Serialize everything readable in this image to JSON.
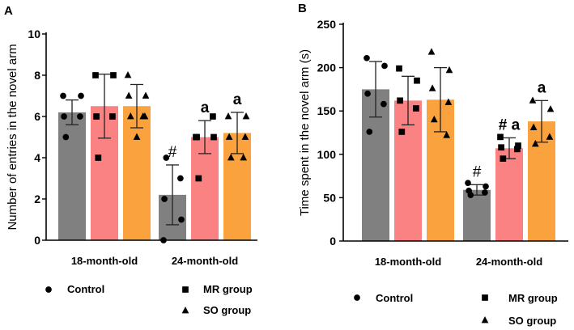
{
  "chart_data": [
    {
      "type": "bar",
      "panel": "A",
      "title": "",
      "ylabel": "Number of entries in the novel arm",
      "xlabel": "",
      "ylim": [
        0,
        10
      ],
      "yticks": [
        0,
        2,
        4,
        6,
        8,
        10
      ],
      "categories": [
        "18-month-old",
        "24-month-old"
      ],
      "series": [
        {
          "name": "Control",
          "marker": "circle",
          "color": "#808080",
          "values": [
            6.2,
            2.2
          ],
          "errors": [
            0.6,
            1.45
          ],
          "points": [
            [
              7,
              7,
              6,
              6,
              5
            ],
            [
              0,
              1,
              2,
              3,
              4
            ]
          ]
        },
        {
          "name": "MR group",
          "marker": "square",
          "color": "#fa8282",
          "values": [
            6.5,
            5.0
          ],
          "errors": [
            1.55,
            0.8
          ],
          "points": [
            [
              8,
              8,
              6,
              6,
              4
            ],
            [
              5,
              5,
              5,
              6,
              3
            ]
          ]
        },
        {
          "name": "SO group",
          "marker": "triangle",
          "color": "#faa23d",
          "values": [
            6.5,
            5.2
          ],
          "errors": [
            1.05,
            1.0
          ],
          "points": [
            [
              8,
              7,
              7,
              6,
              6,
              6,
              5
            ],
            [
              6,
              6,
              5,
              5,
              4,
              4
            ]
          ]
        }
      ],
      "annotations": [
        {
          "category": "24-month-old",
          "series": "Control",
          "text": "#"
        },
        {
          "category": "24-month-old",
          "series": "MR group",
          "text": "a"
        },
        {
          "category": "24-month-old",
          "series": "SO group",
          "text": "a"
        }
      ]
    },
    {
      "type": "bar",
      "panel": "B",
      "title": "",
      "ylabel": "Time spent in the novel arm (s)",
      "xlabel": "",
      "ylim": [
        0,
        250
      ],
      "yticks": [
        0,
        50,
        100,
        150,
        200,
        250
      ],
      "categories": [
        "18-month-old",
        "24-month-old"
      ],
      "series": [
        {
          "name": "Control",
          "marker": "circle",
          "color": "#808080",
          "values": [
            175,
            59
          ],
          "errors": [
            32,
            6
          ],
          "points": [
            [
              211,
              202,
              170,
              158,
              126
            ],
            [
              67,
              63,
              58,
              56,
              53
            ]
          ]
        },
        {
          "name": "MR group",
          "marker": "square",
          "color": "#fa8282",
          "values": [
            162,
            107
          ],
          "errors": [
            28,
            12
          ],
          "points": [
            [
              199,
              185,
              162,
              153,
              126
            ],
            [
              120,
              110,
              108,
              106,
              95
            ]
          ]
        },
        {
          "name": "SO group",
          "marker": "triangle",
          "color": "#faa23d",
          "values": [
            163,
            138
          ],
          "errors": [
            37,
            24
          ],
          "points": [
            [
              218,
              197,
              176,
              160,
              140,
              122
            ],
            [
              162,
              152,
              131,
              120,
              112
            ]
          ]
        }
      ],
      "annotations": [
        {
          "category": "24-month-old",
          "series": "Control",
          "text": "#"
        },
        {
          "category": "24-month-old",
          "series": "MR group",
          "text": "# a"
        },
        {
          "category": "24-month-old",
          "series": "SO group",
          "text": "a"
        }
      ]
    }
  ]
}
